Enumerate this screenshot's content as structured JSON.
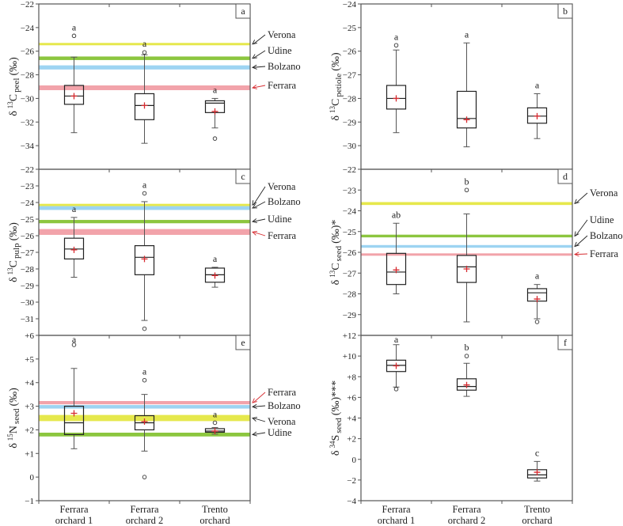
{
  "chart_data": {
    "type": "box",
    "categories": [
      [
        "Ferrara",
        "orchard 1"
      ],
      [
        "Ferrara",
        "orchard 2"
      ],
      [
        "Trento",
        "orchard"
      ]
    ],
    "colors": {
      "Verona": "#e6e84c",
      "Udine": "#8cc63f",
      "Bolzano": "#9dd4f2",
      "Ferrara": "#f2a3aa",
      "ferrara_label": "#d62a2f",
      "mean_marker": "#d62a2f"
    },
    "panels": [
      {
        "id": "a",
        "panel_label": "a",
        "ylabel": {
          "delta": "δ",
          "iso": "13",
          "el": "C",
          "sub": "peel",
          "unit": "(‰)"
        },
        "ylim": [
          -36,
          -22
        ],
        "ticks": [
          -22,
          -24,
          -26,
          -28,
          -30,
          -32,
          -34
        ],
        "tick_labels": [
          "−22",
          "−24",
          "−26",
          "−28",
          "−30",
          "−32",
          "−34"
        ],
        "boxes": [
          {
            "letter": "a",
            "whisker_low": -32.9,
            "q1": -30.5,
            "median": -29.8,
            "q3": -28.9,
            "whisker_high": -26.5,
            "mean": -29.8,
            "outliers": [
              -24.7
            ]
          },
          {
            "letter": "a",
            "whisker_low": -33.8,
            "q1": -31.8,
            "median": -30.6,
            "q3": -29.6,
            "whisker_high": -26.3,
            "mean": -30.6,
            "outliers": [
              -26.1
            ]
          },
          {
            "letter": "a",
            "whisker_low": -32.5,
            "q1": -31.2,
            "median": -30.4,
            "q3": -30.2,
            "whisker_high": -30.0,
            "mean": -31.1,
            "outliers": [
              -33.4
            ]
          }
        ],
        "bands": [
          {
            "site": "Verona",
            "range": [
              -25.5,
              -25.3
            ]
          },
          {
            "site": "Udine",
            "range": [
              -26.75,
              -26.45
            ]
          },
          {
            "site": "Bolzano",
            "range": [
              -27.55,
              -27.2
            ]
          },
          {
            "site": "Ferrara",
            "range": [
              -29.3,
              -28.9
            ]
          }
        ]
      },
      {
        "id": "b",
        "panel_label": "b",
        "ylabel": {
          "delta": "δ",
          "iso": "13",
          "el": "C",
          "sub": "petiole",
          "unit": "(‰)"
        },
        "ylim": [
          -31,
          -24
        ],
        "ticks": [
          -24,
          -25,
          -26,
          -27,
          -28,
          -29,
          -30
        ],
        "tick_labels": [
          "−24",
          "−25",
          "−26",
          "−27",
          "−28",
          "−29",
          "−30"
        ],
        "boxes": [
          {
            "letter": "a",
            "whisker_low": -29.45,
            "q1": -28.45,
            "median": -28.0,
            "q3": -27.45,
            "whisker_high": -25.95,
            "mean": -28.0,
            "outliers": [
              -25.75
            ]
          },
          {
            "letter": "a",
            "whisker_low": -30.05,
            "q1": -29.25,
            "median": -28.85,
            "q3": -27.7,
            "whisker_high": -25.65,
            "mean": -28.9,
            "outliers": []
          },
          {
            "letter": "a",
            "whisker_low": -29.7,
            "q1": -29.05,
            "median": -28.75,
            "q3": -28.4,
            "whisker_high": -27.8,
            "mean": -28.75,
            "outliers": []
          }
        ],
        "bands": []
      },
      {
        "id": "c",
        "panel_label": "c",
        "ylabel": {
          "delta": "δ",
          "iso": "13",
          "el": "C",
          "sub": "pulp",
          "unit": "(‰)"
        },
        "ylim": [
          -32,
          -22
        ],
        "ticks": [
          -22,
          -23,
          -24,
          -25,
          -26,
          -27,
          -28,
          -29,
          -30,
          -31
        ],
        "tick_labels": [
          "−22",
          "−23",
          "−24",
          "−25",
          "−26",
          "−27",
          "−28",
          "−29",
          "−30",
          "−31"
        ],
        "boxes": [
          {
            "letter": "a",
            "whisker_low": -28.5,
            "q1": -27.4,
            "median": -26.8,
            "q3": -26.15,
            "whisker_high": -24.9,
            "mean": -26.85,
            "outliers": []
          },
          {
            "letter": "a",
            "whisker_low": -31.1,
            "q1": -28.35,
            "median": -27.3,
            "q3": -26.6,
            "whisker_high": -23.95,
            "mean": -27.4,
            "outliers": [
              -23.45,
              -31.6
            ]
          },
          {
            "letter": "a",
            "whisker_low": -29.1,
            "q1": -28.8,
            "median": -28.35,
            "q3": -27.95,
            "whisker_high": -27.9,
            "mean": -28.4,
            "outliers": []
          }
        ],
        "bands": [
          {
            "site": "Verona",
            "range": [
              -24.22,
              -24.08
            ]
          },
          {
            "site": "Bolzano",
            "range": [
              -24.45,
              -24.22
            ]
          },
          {
            "site": "Udine",
            "range": [
              -25.25,
              -25.05
            ]
          },
          {
            "site": "Ferrara",
            "range": [
              -25.95,
              -25.6
            ]
          }
        ]
      },
      {
        "id": "d",
        "panel_label": "d",
        "ylabel": {
          "delta": "δ",
          "iso": "13",
          "el": "C",
          "sub": "seed",
          "unit": "(‰)*"
        },
        "ylim": [
          -30,
          -22
        ],
        "ticks": [
          -22,
          -23,
          -24,
          -25,
          -26,
          -27,
          -28,
          -29
        ],
        "tick_labels": [
          "−22",
          "−23",
          "−24",
          "−25",
          "−26",
          "−27",
          "−28",
          "−29"
        ],
        "boxes": [
          {
            "letter": "ab",
            "whisker_low": -28.0,
            "q1": -27.55,
            "median": -26.95,
            "q3": -26.05,
            "whisker_high": -24.6,
            "mean": -26.85,
            "outliers": []
          },
          {
            "letter": "b",
            "whisker_low": -29.35,
            "q1": -27.45,
            "median": -26.7,
            "q3": -26.15,
            "whisker_high": -24.15,
            "mean": -26.8,
            "outliers": [
              -23.0
            ]
          },
          {
            "letter": "a",
            "whisker_low": -29.2,
            "q1": -28.35,
            "median": -27.95,
            "q3": -27.75,
            "whisker_high": -27.55,
            "mean": -28.25,
            "outliers": [
              -29.35
            ]
          }
        ],
        "bands": [
          {
            "site": "Verona",
            "range": [
              -23.72,
              -23.58
            ]
          },
          {
            "site": "Udine",
            "range": [
              -25.28,
              -25.15
            ]
          },
          {
            "site": "Bolzano",
            "range": [
              -25.78,
              -25.65
            ]
          },
          {
            "site": "Ferrara",
            "range": [
              -26.15,
              -26.05
            ]
          }
        ]
      },
      {
        "id": "e",
        "panel_label": "e",
        "ylabel": {
          "delta": "δ",
          "iso": "15",
          "el": "N",
          "sub": "seed",
          "unit": "(‰)"
        },
        "ylim": [
          -1,
          6
        ],
        "ticks": [
          6,
          5,
          4,
          3,
          2,
          1,
          0,
          -1
        ],
        "tick_labels": [
          "+6",
          "+5",
          "+4",
          "+3",
          "+2",
          "+1",
          "0",
          "−1"
        ],
        "boxes": [
          {
            "letter": "a",
            "whisker_low": 1.2,
            "q1": 1.8,
            "median": 2.3,
            "q3": 3.0,
            "whisker_high": 4.6,
            "mean": 2.7,
            "outliers": [
              5.6
            ]
          },
          {
            "letter": "a",
            "whisker_low": 1.1,
            "q1": 2.0,
            "median": 2.3,
            "q3": 2.6,
            "whisker_high": 3.5,
            "mean": 2.35,
            "outliers": [
              4.1,
              0.0
            ]
          },
          {
            "letter": "a",
            "whisker_low": 1.82,
            "q1": 1.9,
            "median": 1.95,
            "q3": 2.05,
            "whisker_high": 2.1,
            "mean": 1.95,
            "outliers": [
              2.3
            ]
          }
        ],
        "bands": [
          {
            "site": "Ferrara",
            "range": [
              3.08,
              3.22
            ]
          },
          {
            "site": "Bolzano",
            "range": [
              2.9,
              3.05
            ]
          },
          {
            "site": "Verona",
            "range": [
              2.37,
              2.63
            ]
          },
          {
            "site": "Udine",
            "range": [
              1.72,
              1.88
            ]
          }
        ]
      },
      {
        "id": "f",
        "panel_label": "f",
        "ylabel": {
          "delta": "δ",
          "iso": "34",
          "el": "S",
          "sub": "seed",
          "unit": "(‰)***"
        },
        "ylim": [
          -4,
          12
        ],
        "ticks": [
          12,
          10,
          8,
          6,
          4,
          2,
          0,
          -2,
          -4
        ],
        "tick_labels": [
          "+12",
          "+10",
          "+8",
          "+6",
          "+4",
          "+2",
          "0",
          "−2",
          "−4"
        ],
        "boxes": [
          {
            "letter": "a",
            "whisker_low": 7.0,
            "q1": 8.5,
            "median": 9.1,
            "q3": 9.6,
            "whisker_high": 11.1,
            "mean": 9.05,
            "outliers": [
              6.8
            ]
          },
          {
            "letter": "b",
            "whisker_low": 6.1,
            "q1": 6.7,
            "median": 7.05,
            "q3": 7.8,
            "whisker_high": 9.3,
            "mean": 7.2,
            "outliers": [
              10.0
            ]
          },
          {
            "letter": "c",
            "whisker_low": -2.1,
            "q1": -1.8,
            "median": -1.5,
            "q3": -1.0,
            "whisker_high": -0.2,
            "mean": -1.25,
            "outliers": []
          }
        ],
        "bands": []
      }
    ]
  }
}
